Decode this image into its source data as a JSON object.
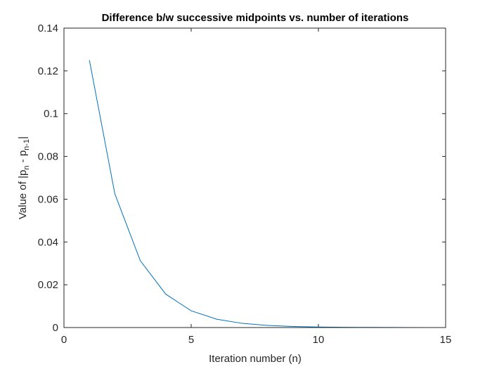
{
  "chart_data": {
    "type": "line",
    "title": "Difference b/w successive midpoints vs. number of iterations",
    "xlabel": "Iteration number (n)",
    "ylabel": {
      "prefix": "Value of |p",
      "sub1": "n",
      "middle": " - p",
      "sub2": "n-1",
      "suffix": "|"
    },
    "xlim": [
      0,
      15
    ],
    "ylim": [
      0,
      0.14
    ],
    "xticks": [
      "0",
      "5",
      "10",
      "15"
    ],
    "yticks": [
      "0",
      "0.02",
      "0.04",
      "0.06",
      "0.08",
      "0.1",
      "0.12",
      "0.14"
    ],
    "grid": false,
    "series": [
      {
        "color": "#0072bd",
        "x": [
          1,
          2,
          3,
          4,
          5,
          6,
          7,
          8,
          9,
          10,
          11,
          12,
          13,
          14,
          15
        ],
        "y": [
          0.125,
          0.0625,
          0.03125,
          0.015625,
          0.0078125,
          0.00390625,
          0.001953125,
          0.0009765625,
          0.00048828125,
          0.000244140625,
          0.0001220703125,
          6.103515625e-05,
          3.0517578125e-05,
          1.52587890625e-05,
          7.62939453125e-06
        ]
      }
    ]
  }
}
